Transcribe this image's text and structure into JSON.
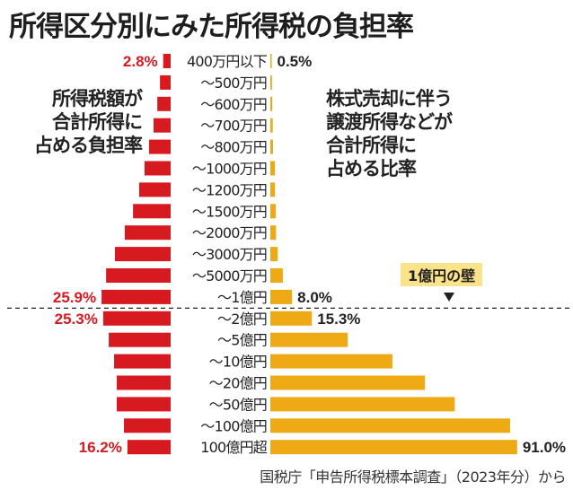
{
  "chart_data": {
    "type": "bar",
    "title": "所得区分別にみた所得税の負担率",
    "left_series": {
      "name": "所得税額が合計所得に占める負担率",
      "color": "#d71920",
      "unit": "%",
      "values": [
        2.8,
        4.0,
        5.0,
        6.4,
        8.1,
        9.8,
        11.8,
        14.1,
        17.2,
        20.9,
        24.2,
        25.9,
        25.3,
        23.2,
        21.2,
        20.2,
        20.2,
        17.5,
        16.2
      ],
      "labeled": {
        "0": "2.8%",
        "11": "25.9%",
        "12": "25.3%",
        "18": "16.2%"
      }
    },
    "right_series": {
      "name": "株式売却に伴う譲渡所得などが合計所得に占める比率",
      "color": "#edaa14",
      "unit": "%",
      "values": [
        0.5,
        0.6,
        0.7,
        0.9,
        1.0,
        1.7,
        1.7,
        2.0,
        2.1,
        2.7,
        4.6,
        8.0,
        15.3,
        28.5,
        45.0,
        57.0,
        68.0,
        88.4,
        91.0
      ],
      "labeled": {
        "0": "0.5%",
        "11": "8.0%",
        "12": "15.3%",
        "18": "91.0%"
      }
    },
    "categories": [
      "400万円以下",
      "～500万円",
      "～600万円",
      "～700万円",
      "～800万円",
      "～1000万円",
      "～1200万円",
      "～1500万円",
      "～2000万円",
      "～3000万円",
      "～5000万円",
      "～1億円",
      "～2億円",
      "～5億円",
      "～10億円",
      "～20億円",
      "～50億円",
      "～100億円",
      "100億円超"
    ],
    "annotation": {
      "text": "1億円の壁",
      "after_category_index": 11,
      "style": "dashed-line"
    },
    "left_description": "所得税額が\n合計所得に\n占める負担率",
    "right_description": "株式売却に伴う\n譲渡所得などが\n合計所得に\n占める比率",
    "source": "国税庁「申告所得税標本調査」（2023年分）から",
    "xlim_left": [
      0,
      30
    ],
    "xlim_right": [
      0,
      100
    ],
    "grid": false,
    "legend": "none"
  }
}
